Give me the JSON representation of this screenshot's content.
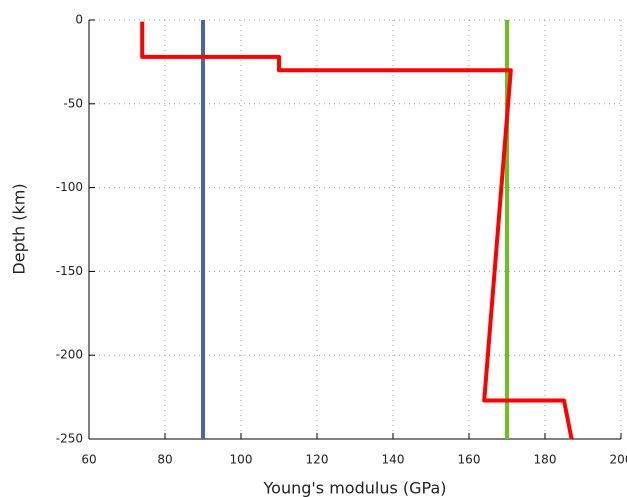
{
  "chart_data": {
    "type": "line",
    "xlabel": "Young's modulus (GPa)",
    "ylabel": "Depth (km)",
    "xlim": [
      60,
      200
    ],
    "xticks": [
      60,
      80,
      100,
      120,
      140,
      160,
      180,
      200
    ],
    "ylim": [
      -250,
      0
    ],
    "yticks": [
      0,
      -50,
      -100,
      -150,
      -200,
      -250
    ],
    "grid": true,
    "series": [
      {
        "color": "#ff0000",
        "x": [
          74,
          74,
          110,
          110,
          171,
          164,
          185,
          187
        ],
        "values": [
          -1,
          -22,
          -22,
          -30,
          -30,
          -227,
          -227,
          -250
        ]
      },
      {
        "color": "#4a64a8",
        "x": [
          90,
          90
        ],
        "values": [
          0,
          -250
        ]
      },
      {
        "color": "#6cc21c",
        "x": [
          170,
          170
        ],
        "values": [
          0,
          -250
        ]
      }
    ]
  }
}
